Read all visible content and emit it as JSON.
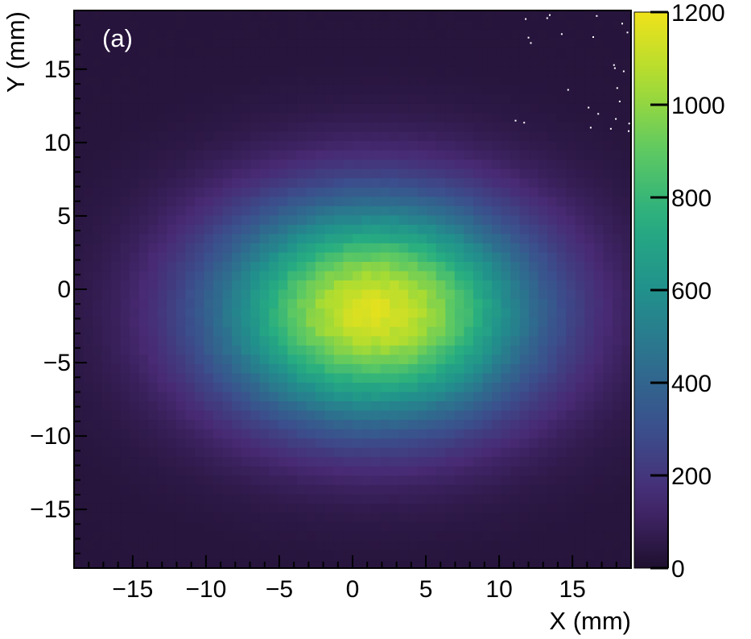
{
  "chart_data": {
    "type": "heatmap",
    "panel_label": "(a)",
    "xlabel": "X (mm)",
    "ylabel": "Y (mm)",
    "xlim": [
      -19,
      19
    ],
    "ylim": [
      -19,
      19
    ],
    "xticks": [
      -15,
      -10,
      -5,
      0,
      5,
      10,
      15
    ],
    "yticks": [
      -15,
      -10,
      -5,
      0,
      5,
      10,
      15
    ],
    "xtick_labels": [
      "−15",
      "−10",
      "−5",
      "0",
      "5",
      "10",
      "15"
    ],
    "ytick_labels": [
      "−15",
      "−10",
      "−5",
      "0",
      "5",
      "10",
      "15"
    ],
    "colorbar": {
      "min": 0,
      "max": 1200,
      "ticks": [
        0,
        200,
        400,
        600,
        800,
        1000,
        1200
      ],
      "tick_labels": [
        "0",
        "200",
        "400",
        "600",
        "800",
        "1000",
        "1200"
      ],
      "colormap": "viridis",
      "colors": [
        "#1e0f2e",
        "#482a74",
        "#3b4f8d",
        "#2d708e",
        "#21918c",
        "#27ad81",
        "#5ec962",
        "#aadc32",
        "#f0e21a"
      ]
    },
    "distribution": {
      "shape": "elliptical gaussian",
      "peak_count": 1150,
      "peak_x": 1.5,
      "peak_y": -1.5,
      "sigma_x": 7.5,
      "sigma_y": 5.2,
      "background_count": 30
    },
    "grid": false,
    "outliers": "sparse white points near top-right corner"
  }
}
